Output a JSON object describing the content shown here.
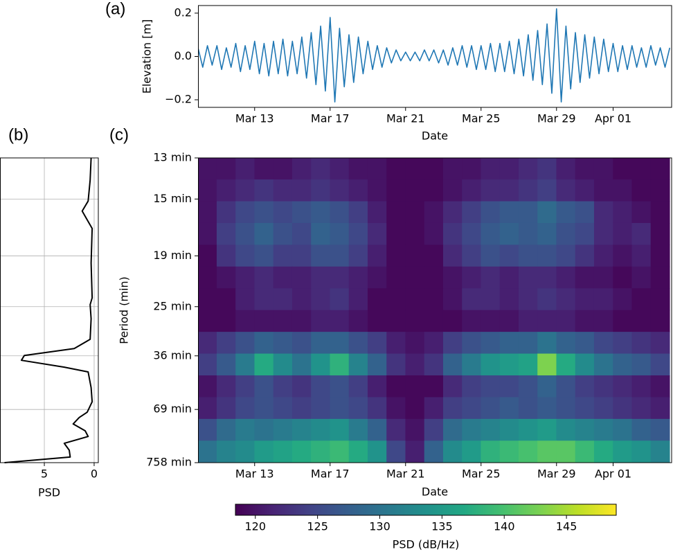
{
  "chart_data": [
    {
      "type": "line",
      "panel_label": "(a)",
      "xlabel": "Date",
      "ylabel": "Elevation [m]",
      "color": "#1f77b4",
      "x": [
        10,
        10.25,
        10.5,
        10.75,
        11,
        11.25,
        11.5,
        11.75,
        12,
        12.25,
        12.5,
        12.75,
        13,
        13.25,
        13.5,
        13.75,
        14,
        14.25,
        14.5,
        14.75,
        15,
        15.25,
        15.5,
        15.75,
        16,
        16.25,
        16.5,
        16.75,
        17,
        17.25,
        17.5,
        17.75,
        18,
        18.25,
        18.5,
        18.75,
        19,
        19.25,
        19.5,
        19.75,
        20,
        20.25,
        20.5,
        20.75,
        21,
        21.25,
        21.5,
        21.75,
        22,
        22.25,
        22.5,
        22.75,
        23,
        23.25,
        23.5,
        23.75,
        24,
        24.25,
        24.5,
        24.75,
        25,
        25.25,
        25.5,
        25.75,
        26,
        26.25,
        26.5,
        26.75,
        27,
        27.25,
        27.5,
        27.75,
        28,
        28.25,
        28.5,
        28.75,
        29,
        29.25,
        29.5,
        29.75,
        30,
        30.25,
        30.5,
        30.75,
        31,
        31.25,
        31.5,
        31.75,
        32,
        32.25,
        32.5,
        32.75,
        33,
        33.25,
        33.5,
        33.75,
        34,
        34.25,
        34.5,
        34.75,
        35
      ],
      "values": [
        0.04,
        -0.05,
        0.05,
        -0.04,
        0.05,
        -0.06,
        0.04,
        -0.05,
        0.06,
        -0.07,
        0.05,
        -0.06,
        0.07,
        -0.08,
        0.06,
        -0.09,
        0.07,
        -0.08,
        0.08,
        -0.09,
        0.07,
        -0.08,
        0.09,
        -0.1,
        0.11,
        -0.13,
        0.14,
        -0.16,
        0.18,
        -0.21,
        0.13,
        -0.14,
        0.1,
        -0.12,
        0.09,
        -0.08,
        0.07,
        -0.06,
        0.05,
        -0.05,
        0.04,
        -0.03,
        0.03,
        -0.02,
        0.02,
        -0.02,
        0.02,
        -0.02,
        0.03,
        -0.02,
        0.03,
        -0.03,
        0.03,
        -0.04,
        0.04,
        -0.04,
        0.05,
        -0.05,
        0.05,
        -0.06,
        0.05,
        -0.06,
        0.06,
        -0.07,
        0.06,
        -0.07,
        0.07,
        -0.08,
        0.08,
        -0.09,
        0.1,
        -0.11,
        0.12,
        -0.13,
        0.15,
        -0.17,
        0.22,
        -0.21,
        0.14,
        -0.15,
        0.11,
        -0.12,
        0.1,
        -0.1,
        0.09,
        -0.08,
        0.08,
        -0.07,
        0.06,
        -0.07,
        0.05,
        -0.06,
        0.05,
        -0.05,
        0.04,
        -0.05,
        0.05,
        -0.04,
        0.04,
        -0.05,
        0.04
      ],
      "xlim": [
        10,
        35.1
      ],
      "xticks": [
        {
          "value": 13,
          "label": "Mar 13"
        },
        {
          "value": 17,
          "label": "Mar 17"
        },
        {
          "value": 21,
          "label": "Mar 21"
        },
        {
          "value": 25,
          "label": "Mar 25"
        },
        {
          "value": 29,
          "label": "Mar 29"
        },
        {
          "value": 32,
          "label": "Apr 01"
        }
      ],
      "ylim": [
        -0.235,
        0.235
      ],
      "yticks": [
        {
          "value": -0.2,
          "label": "−0.2"
        },
        {
          "value": 0,
          "label": "0.0"
        },
        0.2
      ]
    },
    {
      "type": "line",
      "orientation": "horizontal",
      "panel_label": "(b)",
      "xlabel": "PSD",
      "color": "#000000",
      "grid": true,
      "y": [
        0.0769,
        0.0714,
        0.0662,
        0.0637,
        0.062,
        0.0594,
        0.0508,
        0.0422,
        0.0405,
        0.037,
        0.0319,
        0.0296,
        0.0279,
        0.0267,
        0.025,
        0.0238,
        0.0199,
        0.0164,
        0.0138,
        0.0125,
        0.0109,
        0.0092,
        0.0078,
        0.0061,
        0.0044,
        0.0027,
        0.0013
      ],
      "values": [
        0.3,
        0.4,
        0.6,
        1.2,
        0.8,
        0.2,
        0.3,
        0.2,
        0.4,
        0.3,
        0.4,
        2.0,
        7.0,
        7.3,
        3.0,
        0.6,
        0.3,
        0.2,
        0.7,
        1.5,
        2.1,
        0.9,
        0.6,
        3.0,
        2.5,
        2.4,
        9.0
      ],
      "xlim": [
        9.45,
        -0.42
      ],
      "xticks": [
        5,
        0
      ],
      "ylim": [
        0.0013,
        0.0769
      ],
      "yticks": [
        0.0769,
        0.0667,
        0.0526,
        0.04,
        0.0278,
        0.0145,
        0.0013
      ]
    },
    {
      "type": "heatmap",
      "panel_label": "(c)",
      "xlabel": "Date",
      "ylabel": "Period (min)",
      "x": [
        10.5,
        11.5,
        12.5,
        13.5,
        14.5,
        15.5,
        16.5,
        17.5,
        18.5,
        19.5,
        20.5,
        21.5,
        22.5,
        23.5,
        24.5,
        25.5,
        26.5,
        27.5,
        28.5,
        29.5,
        30.5,
        31.5,
        32.5,
        33.5,
        34.5
      ],
      "y": [
        0.0742,
        0.0688,
        0.0634,
        0.058,
        0.0526,
        0.0472,
        0.0418,
        0.0364,
        0.031,
        0.0256,
        0.0202,
        0.0148,
        0.0094,
        0.004
      ],
      "z": [
        [
          120,
          120,
          121,
          120,
          120,
          121,
          122,
          121,
          120,
          120,
          119,
          119,
          119,
          120,
          120,
          121,
          121,
          122,
          123,
          121,
          120,
          120,
          119,
          119,
          119
        ],
        [
          120,
          121,
          122,
          123,
          122,
          122,
          123,
          122,
          121,
          120,
          119,
          119,
          119,
          120,
          121,
          122,
          122,
          123,
          124,
          122,
          121,
          120,
          120,
          119,
          119
        ],
        [
          120,
          123,
          125,
          126,
          125,
          126,
          127,
          126,
          124,
          121,
          119,
          119,
          120,
          122,
          124,
          126,
          127,
          127,
          129,
          127,
          126,
          122,
          121,
          120,
          119
        ],
        [
          120,
          124,
          126,
          128,
          126,
          125,
          128,
          127,
          125,
          122,
          119,
          119,
          120,
          123,
          125,
          127,
          128,
          127,
          128,
          126,
          125,
          122,
          121,
          122,
          119
        ],
        [
          119,
          123,
          125,
          126,
          124,
          124,
          126,
          126,
          124,
          121,
          119,
          119,
          119,
          122,
          124,
          126,
          125,
          126,
          126,
          125,
          123,
          121,
          120,
          121,
          119
        ],
        [
          119,
          120,
          121,
          122,
          121,
          121,
          122,
          122,
          121,
          120,
          119,
          119,
          119,
          120,
          121,
          122,
          121,
          122,
          122,
          121,
          120,
          120,
          119,
          120,
          119
        ],
        [
          119,
          119,
          121,
          122,
          122,
          121,
          122,
          123,
          121,
          119,
          119,
          119,
          119,
          120,
          122,
          122,
          121,
          122,
          123,
          122,
          121,
          121,
          120,
          119,
          119
        ],
        [
          119,
          119,
          120,
          120,
          120,
          120,
          121,
          121,
          120,
          119,
          119,
          119,
          119,
          119,
          120,
          120,
          120,
          121,
          121,
          121,
          120,
          120,
          119,
          119,
          119
        ],
        [
          122,
          124,
          126,
          128,
          127,
          126,
          128,
          128,
          126,
          124,
          121,
          120,
          121,
          124,
          126,
          127,
          128,
          128,
          130,
          128,
          127,
          125,
          124,
          123,
          122
        ],
        [
          124,
          127,
          131,
          137,
          133,
          130,
          134,
          138,
          132,
          128,
          123,
          121,
          123,
          128,
          131,
          134,
          135,
          136,
          143,
          137,
          133,
          130,
          128,
          127,
          125
        ],
        [
          120,
          122,
          124,
          126,
          124,
          123,
          125,
          126,
          124,
          121,
          119,
          119,
          119,
          122,
          124,
          125,
          125,
          126,
          128,
          126,
          124,
          123,
          122,
          121,
          120
        ],
        [
          121,
          123,
          125,
          126,
          125,
          124,
          125,
          126,
          125,
          123,
          120,
          119,
          121,
          124,
          125,
          126,
          127,
          126,
          127,
          126,
          125,
          124,
          123,
          122,
          121
        ],
        [
          126,
          129,
          131,
          130,
          131,
          132,
          133,
          134,
          131,
          128,
          122,
          120,
          124,
          129,
          131,
          132,
          133,
          134,
          135,
          133,
          132,
          131,
          130,
          128,
          127
        ],
        [
          130,
          132,
          133,
          135,
          136,
          137,
          138,
          139,
          137,
          134,
          125,
          121,
          128,
          133,
          135,
          138,
          139,
          140,
          141,
          141,
          139,
          137,
          135,
          134,
          132
        ]
      ],
      "xlim": [
        10,
        35.1
      ],
      "xticks": [
        {
          "value": 13,
          "label": "Mar 13"
        },
        {
          "value": 17,
          "label": "Mar 17"
        },
        {
          "value": 21,
          "label": "Mar 21"
        },
        {
          "value": 25,
          "label": "Mar 25"
        },
        {
          "value": 29,
          "label": "Mar 29"
        },
        {
          "value": 32,
          "label": "Apr 01"
        }
      ],
      "ylim": [
        0.0013,
        0.0769
      ],
      "yticks": [
        {
          "value": 0.0769,
          "label": "13 min"
        },
        {
          "value": 0.0667,
          "label": "15 min"
        },
        {
          "value": 0.0526,
          "label": "19 min"
        },
        {
          "value": 0.04,
          "label": "25 min"
        },
        {
          "value": 0.0278,
          "label": "36 min"
        },
        {
          "value": 0.0145,
          "label": "69 min"
        },
        {
          "value": 0.0013,
          "label": "758 min"
        }
      ],
      "colorbar": {
        "label": "PSD (dB/Hz)",
        "lim": [
          118.4,
          149
        ],
        "ticks": [
          120,
          125,
          130,
          135,
          140,
          145
        ]
      }
    }
  ]
}
